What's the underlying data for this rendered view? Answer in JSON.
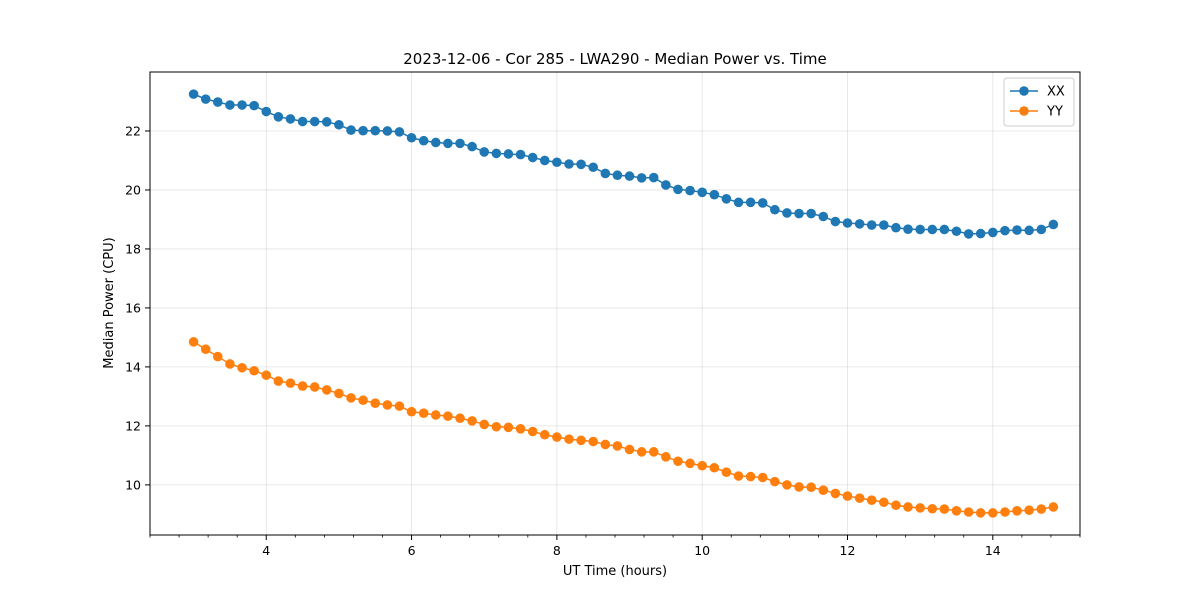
{
  "chart_data": {
    "type": "line",
    "title": "2023-12-06 - Cor 285 - LWA290 - Median Power vs. Time",
    "xlabel": "UT Time (hours)",
    "ylabel": "Median Power (CPU)",
    "xlim": [
      2.4,
      15.2
    ],
    "ylim": [
      8.3,
      24.0
    ],
    "xticks": [
      4,
      6,
      8,
      10,
      12,
      14
    ],
    "xtick_labels": [
      "4",
      "6",
      "8",
      "10",
      "12",
      "14"
    ],
    "xminor_step": 0.4,
    "yticks": [
      10,
      12,
      14,
      16,
      18,
      20,
      22
    ],
    "ytick_labels": [
      "10",
      "12",
      "14",
      "16",
      "18",
      "20",
      "22"
    ],
    "grid": true,
    "legend_position": "top-right",
    "x": [
      3.0,
      3.167,
      3.333,
      3.5,
      3.667,
      3.833,
      4.0,
      4.167,
      4.333,
      4.5,
      4.667,
      4.833,
      5.0,
      5.167,
      5.333,
      5.5,
      5.667,
      5.833,
      6.0,
      6.167,
      6.333,
      6.5,
      6.667,
      6.833,
      7.0,
      7.167,
      7.333,
      7.5,
      7.667,
      7.833,
      8.0,
      8.167,
      8.333,
      8.5,
      8.667,
      8.833,
      9.0,
      9.167,
      9.333,
      9.5,
      9.667,
      9.833,
      10.0,
      10.167,
      10.333,
      10.5,
      10.667,
      10.833,
      11.0,
      11.167,
      11.333,
      11.5,
      11.667,
      11.833,
      12.0,
      12.167,
      12.333,
      12.5,
      12.667,
      12.833,
      13.0,
      13.167,
      13.333,
      13.5,
      13.667,
      13.833,
      14.0,
      14.167,
      14.333,
      14.5,
      14.667,
      14.833
    ],
    "series": [
      {
        "name": "XX",
        "color": "#1f77b4",
        "values": [
          23.25,
          23.08,
          22.98,
          22.88,
          22.88,
          22.86,
          22.66,
          22.48,
          22.41,
          22.32,
          22.32,
          22.31,
          22.21,
          22.03,
          22.01,
          22.01,
          22.0,
          21.97,
          21.77,
          21.67,
          21.61,
          21.58,
          21.58,
          21.47,
          21.29,
          21.24,
          21.22,
          21.2,
          21.1,
          21.0,
          20.94,
          20.88,
          20.87,
          20.77,
          20.56,
          20.5,
          20.47,
          20.41,
          20.42,
          20.17,
          20.02,
          19.98,
          19.92,
          19.84,
          19.7,
          19.58,
          19.58,
          19.56,
          19.33,
          19.22,
          19.2,
          19.2,
          19.1,
          18.93,
          18.88,
          18.85,
          18.81,
          18.81,
          18.72,
          18.67,
          18.66,
          18.66,
          18.66,
          18.6,
          18.51,
          18.52,
          18.56,
          18.62,
          18.64,
          18.63,
          18.66,
          18.83
        ]
      },
      {
        "name": "YY",
        "color": "#ff7f0e",
        "values": [
          14.85,
          14.6,
          14.35,
          14.1,
          13.97,
          13.87,
          13.72,
          13.52,
          13.45,
          13.35,
          13.32,
          13.22,
          13.1,
          12.95,
          12.87,
          12.77,
          12.71,
          12.67,
          12.48,
          12.43,
          12.37,
          12.33,
          12.26,
          12.17,
          12.05,
          11.97,
          11.95,
          11.9,
          11.81,
          11.7,
          11.62,
          11.55,
          11.51,
          11.47,
          11.37,
          11.32,
          11.2,
          11.12,
          11.12,
          10.95,
          10.8,
          10.73,
          10.65,
          10.58,
          10.43,
          10.3,
          10.28,
          10.25,
          10.11,
          10.0,
          9.93,
          9.92,
          9.82,
          9.71,
          9.62,
          9.55,
          9.48,
          9.41,
          9.31,
          9.25,
          9.22,
          9.19,
          9.18,
          9.12,
          9.08,
          9.05,
          9.05,
          9.08,
          9.12,
          9.14,
          9.18,
          9.25
        ]
      }
    ]
  }
}
